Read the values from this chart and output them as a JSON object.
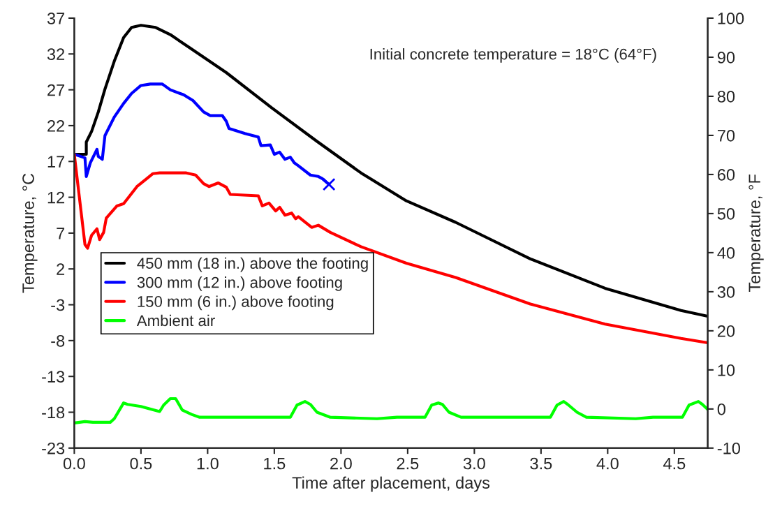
{
  "chart_data": {
    "type": "line",
    "xlabel": "Time after placement, days",
    "ylabel": "Temperature, °C",
    "y2label": "Temperature, °F",
    "annotations": [
      "Initial concrete temperature = 18°C (64°F)"
    ],
    "xlim": [
      0,
      4.75
    ],
    "xticks": [
      {
        "value": 0,
        "label": "0.0"
      },
      {
        "value": 0.5,
        "label": "0.5"
      },
      {
        "value": 1,
        "label": "1.0"
      },
      {
        "value": 1.5,
        "label": "1.5"
      },
      {
        "value": 2,
        "label": "2.0"
      },
      {
        "value": 2.5,
        "label": "2.5"
      },
      {
        "value": 3,
        "label": "3.0"
      },
      {
        "value": 3.5,
        "label": "3.5"
      },
      {
        "value": 4,
        "label": "4.0"
      },
      {
        "value": 4.5,
        "label": "4.5"
      }
    ],
    "ylim": [
      -23,
      37
    ],
    "yticks": [
      -23,
      -18,
      -13,
      -8,
      -3,
      2,
      7,
      12,
      17,
      22,
      27,
      32,
      37
    ],
    "y2lim": [
      -10,
      100
    ],
    "y2ticks": [
      -10,
      0,
      10,
      20,
      30,
      40,
      50,
      60,
      70,
      80,
      90,
      100
    ],
    "grid": false,
    "legend": "left",
    "series": [
      {
        "name": "450 mm (18 in.) above the footing",
        "color": "#000000",
        "x": [
          0,
          0.09,
          0.09,
          0.13,
          0.18,
          0.23,
          0.3,
          0.37,
          0.43,
          0.5,
          0.61,
          0.72,
          0.87,
          1.14,
          1.48,
          1.82,
          2.15,
          2.49,
          2.86,
          3.42,
          3.98,
          4.55,
          4.75
        ],
        "values": [
          18.0,
          18.0,
          19.7,
          21.2,
          23.9,
          27.1,
          31.0,
          34.3,
          35.7,
          36.0,
          35.7,
          34.7,
          32.8,
          29.4,
          24.5,
          19.8,
          15.4,
          11.5,
          8.5,
          3.4,
          -0.7,
          -3.8,
          -4.6
        ]
      },
      {
        "type": "scatter",
        "color": "#0000ff",
        "marker": "cross",
        "x": [
          1.91
        ],
        "values": [
          13.8
        ]
      },
      {
        "name": "300 mm (12 in.) above footing",
        "color": "#0000ff",
        "x": [
          0,
          0.08,
          0.09,
          0.12,
          0.17,
          0.18,
          0.21,
          0.23,
          0.3,
          0.37,
          0.43,
          0.5,
          0.57,
          0.66,
          0.72,
          0.82,
          0.89,
          0.97,
          1.02,
          1.11,
          1.14,
          1.16,
          1.28,
          1.38,
          1.4,
          1.47,
          1.5,
          1.54,
          1.58,
          1.62,
          1.65,
          1.68,
          1.77,
          1.83,
          1.86,
          1.91
        ],
        "values": [
          18.0,
          17.5,
          14.9,
          16.8,
          18.7,
          17.7,
          17.3,
          20.6,
          23.2,
          25.1,
          26.5,
          27.6,
          27.8,
          27.8,
          27.0,
          26.3,
          25.5,
          23.9,
          23.4,
          23.4,
          22.6,
          21.6,
          20.9,
          20.4,
          19.2,
          19.3,
          18.0,
          18.3,
          17.3,
          17.6,
          16.8,
          16.4,
          15.1,
          14.9,
          14.6,
          13.8
        ]
      },
      {
        "name": "150 mm (6 in.) above footing",
        "color": "#ff0000",
        "x": [
          0,
          0.08,
          0.1,
          0.13,
          0.17,
          0.19,
          0.22,
          0.24,
          0.32,
          0.37,
          0.47,
          0.59,
          0.64,
          0.84,
          0.91,
          0.97,
          1.01,
          1.08,
          1.14,
          1.17,
          1.38,
          1.41,
          1.46,
          1.51,
          1.54,
          1.58,
          1.63,
          1.66,
          1.68,
          1.78,
          1.83,
          1.92,
          2.15,
          2.49,
          2.86,
          3.42,
          3.98,
          4.55,
          4.75
        ],
        "values": [
          18.0,
          5.4,
          4.9,
          6.7,
          7.6,
          6.1,
          7.1,
          9.1,
          10.8,
          11.1,
          13.5,
          15.3,
          15.4,
          15.4,
          15.1,
          13.9,
          13.5,
          14.0,
          13.4,
          12.4,
          12.2,
          10.8,
          11.2,
          10.1,
          10.6,
          9.5,
          9.8,
          9.0,
          9.3,
          7.8,
          8.1,
          7.1,
          5.1,
          2.8,
          0.8,
          -2.9,
          -5.7,
          -7.7,
          -8.3
        ]
      },
      {
        "name": "Ambient air",
        "color": "#00ff00",
        "x": [
          0,
          0.08,
          0.14,
          0.27,
          0.3,
          0.37,
          0.4,
          0.5,
          0.64,
          0.67,
          0.72,
          0.76,
          0.81,
          0.88,
          0.94,
          1.62,
          1.67,
          1.73,
          1.77,
          1.82,
          1.92,
          2.27,
          2.42,
          2.63,
          2.68,
          2.73,
          2.76,
          2.81,
          2.9,
          3.57,
          3.62,
          3.67,
          3.7,
          3.77,
          3.84,
          4.21,
          4.34,
          4.56,
          4.61,
          4.68,
          4.71,
          4.75
        ],
        "values": [
          -19.5,
          -19.3,
          -19.4,
          -19.4,
          -18.9,
          -16.7,
          -16.9,
          -17.2,
          -17.9,
          -17.0,
          -16.1,
          -16.1,
          -17.7,
          -18.3,
          -18.7,
          -18.7,
          -17.0,
          -16.5,
          -16.9,
          -18.0,
          -18.7,
          -18.9,
          -18.7,
          -18.7,
          -17.0,
          -16.7,
          -16.9,
          -18.0,
          -18.7,
          -18.7,
          -17.0,
          -16.5,
          -16.9,
          -18.0,
          -18.7,
          -18.9,
          -18.7,
          -18.7,
          -17.0,
          -16.5,
          -16.9,
          -17.6
        ]
      }
    ]
  }
}
